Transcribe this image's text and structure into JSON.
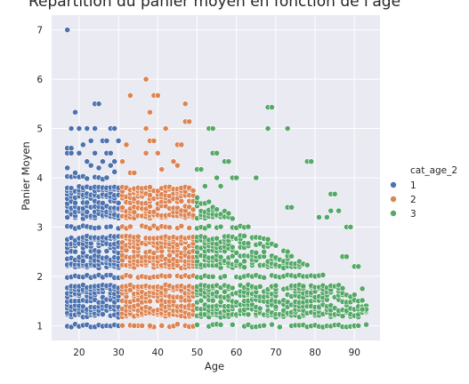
{
  "chart_data": {
    "type": "scatter",
    "title": "Répartition du panier moyen en fonction de l'âge",
    "xlabel": "Age",
    "ylabel": "Panier Moyen",
    "xlim": [
      13,
      96.5
    ],
    "ylim": [
      0.7,
      7.3
    ],
    "x_ticks": [
      20,
      30,
      40,
      50,
      60,
      70,
      80,
      90
    ],
    "y_ticks": [
      1,
      2,
      3,
      4,
      5,
      6,
      7
    ],
    "grid": true,
    "background": "#eaeaf2",
    "legend": {
      "title": "cat_age_2",
      "placement": "right"
    },
    "series": [
      {
        "name": "1",
        "color": "#4c72b0",
        "x_range": [
          17,
          30
        ],
        "points": [
          {
            "x": 17,
            "y": 7.0
          },
          {
            "x": 19,
            "y": 5.33
          },
          {
            "x": 18,
            "y": 5.0
          },
          {
            "x": 20,
            "y": 5.0
          },
          {
            "x": 22,
            "y": 5.0
          },
          {
            "x": 24,
            "y": 5.0
          },
          {
            "x": 24,
            "y": 5.5
          },
          {
            "x": 25,
            "y": 5.5
          },
          {
            "x": 28,
            "y": 5.0
          },
          {
            "x": 29,
            "y": 5.0
          },
          {
            "x": 17,
            "y": 4.6
          },
          {
            "x": 18,
            "y": 4.6
          },
          {
            "x": 21,
            "y": 4.67
          },
          {
            "x": 23,
            "y": 4.75
          },
          {
            "x": 26,
            "y": 4.75
          },
          {
            "x": 27,
            "y": 4.75
          },
          {
            "x": 30,
            "y": 4.75
          },
          {
            "x": 17,
            "y": 4.5
          },
          {
            "x": 18,
            "y": 4.5
          },
          {
            "x": 20,
            "y": 4.5
          },
          {
            "x": 24,
            "y": 4.5
          },
          {
            "x": 27,
            "y": 4.5
          },
          {
            "x": 28,
            "y": 4.5
          },
          {
            "x": 22,
            "y": 4.33
          },
          {
            "x": 26,
            "y": 4.33
          },
          {
            "x": 29,
            "y": 4.33
          },
          {
            "x": 23,
            "y": 4.25
          },
          {
            "x": 28,
            "y": 4.25
          },
          {
            "x": 17,
            "y": 4.2
          },
          {
            "x": 25,
            "y": 4.2
          },
          {
            "x": 29,
            "y": 4.12
          },
          {
            "x": 19,
            "y": 4.1
          }
        ]
      },
      {
        "name": "2",
        "color": "#dd8452",
        "x_range": [
          31,
          49
        ],
        "points": [
          {
            "x": 37,
            "y": 6.0
          },
          {
            "x": 33,
            "y": 5.67
          },
          {
            "x": 39,
            "y": 5.67
          },
          {
            "x": 40,
            "y": 5.67
          },
          {
            "x": 38,
            "y": 5.33
          },
          {
            "x": 47,
            "y": 5.5
          },
          {
            "x": 47,
            "y": 5.14
          },
          {
            "x": 48,
            "y": 5.14
          },
          {
            "x": 37,
            "y": 5.0
          },
          {
            "x": 42,
            "y": 5.0
          },
          {
            "x": 32,
            "y": 4.67
          },
          {
            "x": 38,
            "y": 4.75
          },
          {
            "x": 39,
            "y": 4.75
          },
          {
            "x": 45,
            "y": 4.67
          },
          {
            "x": 46,
            "y": 4.67
          },
          {
            "x": 37,
            "y": 4.5
          },
          {
            "x": 40,
            "y": 4.5
          },
          {
            "x": 31,
            "y": 4.33
          },
          {
            "x": 44,
            "y": 4.33
          },
          {
            "x": 41,
            "y": 4.17
          },
          {
            "x": 45,
            "y": 4.25
          },
          {
            "x": 33,
            "y": 4.1
          },
          {
            "x": 34,
            "y": 4.1
          },
          {
            "x": 35,
            "y": 1.0
          },
          {
            "x": 38,
            "y": 1.0
          },
          {
            "x": 41,
            "y": 1.0
          },
          {
            "x": 34,
            "y": 1.0
          },
          {
            "x": 36,
            "y": 1.0
          }
        ]
      },
      {
        "name": "3",
        "color": "#55a868",
        "x_range": [
          50,
          93
        ],
        "points": [
          {
            "x": 68,
            "y": 5.43
          },
          {
            "x": 69,
            "y": 5.43
          },
          {
            "x": 53,
            "y": 5.0
          },
          {
            "x": 54,
            "y": 5.0
          },
          {
            "x": 68,
            "y": 5.0
          },
          {
            "x": 73,
            "y": 5.0
          },
          {
            "x": 54,
            "y": 4.5
          },
          {
            "x": 55,
            "y": 4.5
          },
          {
            "x": 57,
            "y": 4.33
          },
          {
            "x": 58,
            "y": 4.33
          },
          {
            "x": 78,
            "y": 4.33
          },
          {
            "x": 79,
            "y": 4.33
          },
          {
            "x": 50,
            "y": 4.17
          },
          {
            "x": 51,
            "y": 4.17
          },
          {
            "x": 55,
            "y": 4.0
          },
          {
            "x": 59,
            "y": 4.0
          },
          {
            "x": 60,
            "y": 4.0
          },
          {
            "x": 65,
            "y": 4.0
          },
          {
            "x": 52,
            "y": 3.83
          },
          {
            "x": 56,
            "y": 3.83
          },
          {
            "x": 84,
            "y": 3.67
          },
          {
            "x": 85,
            "y": 3.67
          },
          {
            "x": 73,
            "y": 3.4
          },
          {
            "x": 74,
            "y": 3.4
          },
          {
            "x": 81,
            "y": 3.2
          },
          {
            "x": 83,
            "y": 3.2
          },
          {
            "x": 84,
            "y": 3.33
          },
          {
            "x": 86,
            "y": 3.33
          },
          {
            "x": 88,
            "y": 3.0
          },
          {
            "x": 89,
            "y": 3.0
          },
          {
            "x": 87,
            "y": 2.4
          },
          {
            "x": 88,
            "y": 2.4
          },
          {
            "x": 90,
            "y": 2.2
          },
          {
            "x": 91,
            "y": 2.2
          },
          {
            "x": 92,
            "y": 1.75
          },
          {
            "x": 93,
            "y": 1.33
          },
          {
            "x": 92,
            "y": 1.33
          },
          {
            "x": 90,
            "y": 1.0
          },
          {
            "x": 91,
            "y": 1.0
          }
        ]
      }
    ]
  }
}
